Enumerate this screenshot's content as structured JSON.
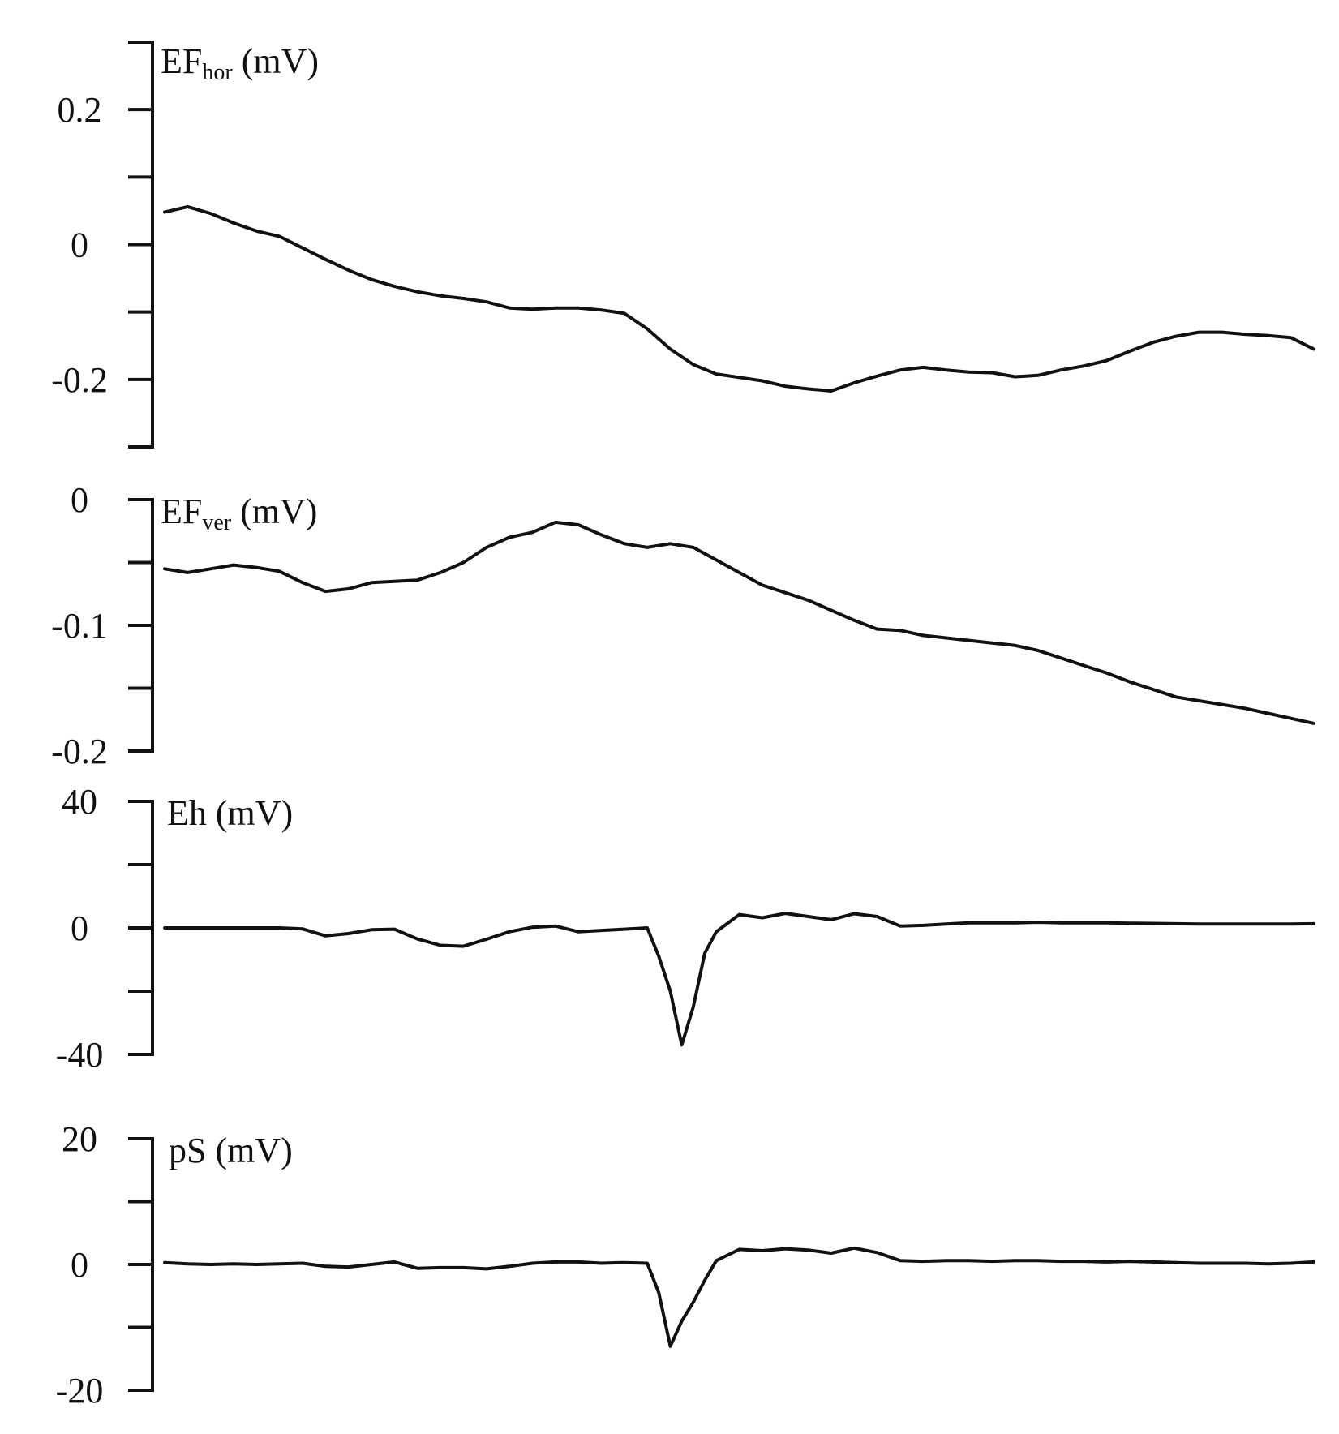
{
  "chart_data": [
    {
      "type": "line",
      "ylabel": {
        "base": "EF",
        "sub": "hor",
        "unit": " (mV)"
      },
      "ylim": [
        -0.3,
        0.3
      ],
      "major_ticks": [
        0.2,
        0,
        -0.2
      ],
      "minor_ticks": [
        0.3,
        0.1,
        -0.1,
        -0.3
      ],
      "tick_labels": [
        "0.2",
        "0",
        "-0.2"
      ],
      "x": [
        0,
        2,
        4,
        6,
        8,
        10,
        12,
        14,
        16,
        18,
        20,
        22,
        24,
        26,
        28,
        30,
        32,
        34,
        36,
        38,
        40,
        42,
        44,
        46,
        48,
        50,
        52,
        54,
        56,
        58,
        60,
        62,
        64,
        66,
        68,
        70,
        72,
        74,
        76,
        78,
        80,
        82,
        84,
        86,
        88,
        90,
        92,
        94,
        96,
        98,
        100
      ],
      "values": [
        0.048,
        0.056,
        0.046,
        0.032,
        0.02,
        0.012,
        -0.005,
        -0.022,
        -0.038,
        -0.052,
        -0.062,
        -0.07,
        -0.076,
        -0.08,
        -0.085,
        -0.094,
        -0.096,
        -0.094,
        -0.094,
        -0.097,
        -0.102,
        -0.125,
        -0.155,
        -0.178,
        -0.192,
        -0.197,
        -0.202,
        -0.21,
        -0.214,
        -0.217,
        -0.205,
        -0.195,
        -0.186,
        -0.182,
        -0.186,
        -0.189,
        -0.19,
        -0.196,
        -0.194,
        -0.186,
        -0.18,
        -0.172,
        -0.158,
        -0.145,
        -0.136,
        -0.13,
        -0.13,
        -0.133,
        -0.135,
        -0.138,
        -0.155
      ],
      "color": "#111111"
    },
    {
      "type": "line",
      "ylabel": {
        "base": "EF",
        "sub": "ver",
        "unit": " (mV)"
      },
      "ylim": [
        -0.2,
        0
      ],
      "major_ticks": [
        0,
        -0.1,
        -0.2
      ],
      "minor_ticks": [
        -0.05,
        -0.15
      ],
      "tick_labels": [
        "0",
        "-0.1",
        "-0.2"
      ],
      "x": [
        0,
        2,
        4,
        6,
        8,
        10,
        12,
        14,
        16,
        18,
        20,
        22,
        24,
        26,
        28,
        30,
        32,
        34,
        36,
        38,
        40,
        42,
        44,
        46,
        48,
        50,
        52,
        54,
        56,
        58,
        60,
        62,
        64,
        66,
        68,
        70,
        72,
        74,
        76,
        78,
        80,
        82,
        84,
        86,
        88,
        90,
        92,
        94,
        96,
        98,
        100
      ],
      "values": [
        -0.055,
        -0.058,
        -0.055,
        -0.052,
        -0.054,
        -0.057,
        -0.066,
        -0.073,
        -0.071,
        -0.066,
        -0.065,
        -0.064,
        -0.058,
        -0.05,
        -0.038,
        -0.03,
        -0.026,
        -0.018,
        -0.02,
        -0.028,
        -0.035,
        -0.038,
        -0.035,
        -0.038,
        -0.048,
        -0.058,
        -0.068,
        -0.074,
        -0.08,
        -0.088,
        -0.096,
        -0.103,
        -0.104,
        -0.108,
        -0.11,
        -0.112,
        -0.114,
        -0.116,
        -0.12,
        -0.126,
        -0.132,
        -0.138,
        -0.145,
        -0.151,
        -0.157,
        -0.16,
        -0.163,
        -0.166,
        -0.17,
        -0.174,
        -0.178
      ],
      "color": "#111111"
    },
    {
      "type": "line",
      "ylabel": {
        "base": "Eh",
        "sub": "",
        "unit": " (mV)"
      },
      "ylim": [
        -40,
        40
      ],
      "major_ticks": [
        40,
        0,
        -40
      ],
      "minor_ticks": [
        20,
        -20
      ],
      "tick_labels": [
        "40",
        "0",
        "-40"
      ],
      "x": [
        0,
        2,
        4,
        6,
        8,
        10,
        12,
        14,
        16,
        18,
        20,
        22,
        24,
        26,
        28,
        30,
        32,
        34,
        36,
        38,
        40,
        42,
        43,
        44,
        45,
        46,
        47,
        48,
        50,
        52,
        54,
        56,
        58,
        60,
        62,
        64,
        66,
        68,
        70,
        72,
        74,
        76,
        78,
        80,
        82,
        84,
        86,
        88,
        90,
        92,
        94,
        96,
        98,
        100
      ],
      "values": [
        0,
        0,
        0,
        0,
        0,
        0,
        -0.3,
        -2.5,
        -1.8,
        -0.6,
        -0.4,
        -3.5,
        -5.5,
        -5.8,
        -3.6,
        -1.2,
        0.2,
        0.6,
        -1.2,
        -0.8,
        -0.4,
        0,
        -9,
        -20,
        -37,
        -25,
        -8,
        -1.2,
        4.2,
        3.2,
        4.6,
        3.6,
        2.6,
        4.5,
        3.6,
        0.6,
        0.8,
        1.2,
        1.6,
        1.6,
        1.6,
        1.8,
        1.6,
        1.6,
        1.6,
        1.5,
        1.4,
        1.3,
        1.2,
        1.2,
        1.2,
        1.2,
        1.2,
        1.3
      ],
      "color": "#111111"
    },
    {
      "type": "line",
      "ylabel": {
        "base": "pS",
        "sub": "",
        "unit": " (mV)"
      },
      "ylim": [
        -20,
        20
      ],
      "major_ticks": [
        20,
        0,
        -20
      ],
      "minor_ticks": [
        10,
        -10
      ],
      "tick_labels": [
        "20",
        "0",
        "-20"
      ],
      "x": [
        0,
        2,
        4,
        6,
        8,
        10,
        12,
        14,
        16,
        18,
        20,
        22,
        24,
        26,
        28,
        30,
        32,
        34,
        36,
        38,
        40,
        42,
        43,
        44,
        45,
        46,
        47,
        48,
        50,
        52,
        54,
        56,
        58,
        60,
        62,
        64,
        66,
        68,
        70,
        72,
        74,
        76,
        78,
        80,
        82,
        84,
        86,
        88,
        90,
        92,
        94,
        96,
        98,
        100
      ],
      "values": [
        0.3,
        0.1,
        0,
        0.1,
        0,
        0.1,
        0.2,
        -0.3,
        -0.4,
        0,
        0.4,
        -0.6,
        -0.5,
        -0.5,
        -0.7,
        -0.3,
        0.2,
        0.4,
        0.4,
        0.2,
        0.3,
        0.2,
        -4.5,
        -13,
        -9,
        -6,
        -2.5,
        0.6,
        2.4,
        2.2,
        2.5,
        2.3,
        1.8,
        2.6,
        1.9,
        0.6,
        0.5,
        0.6,
        0.6,
        0.5,
        0.6,
        0.6,
        0.5,
        0.5,
        0.4,
        0.5,
        0.4,
        0.3,
        0.2,
        0.2,
        0.2,
        0.1,
        0.2,
        0.4
      ],
      "color": "#111111"
    }
  ]
}
